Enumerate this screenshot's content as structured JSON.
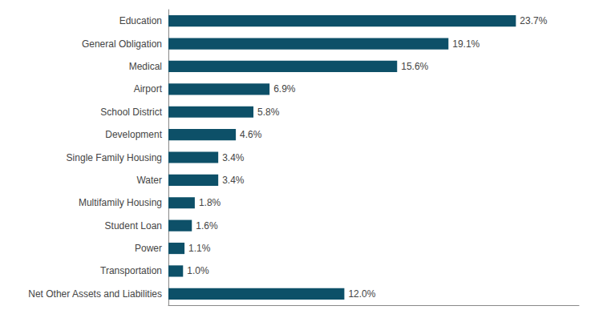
{
  "chart_data": {
    "type": "bar",
    "orientation": "horizontal",
    "categories": [
      "Education",
      "General Obligation",
      "Medical",
      "Airport",
      "School District",
      "Development",
      "Single Family Housing",
      "Water",
      "Multifamily Housing",
      "Student Loan",
      "Power",
      "Transportation",
      "Net Other Assets and Liabilities"
    ],
    "values": [
      23.7,
      19.1,
      15.6,
      6.9,
      5.8,
      4.6,
      3.4,
      3.4,
      1.8,
      1.6,
      1.1,
      1.0,
      12.0
    ],
    "value_labels": [
      "23.7%",
      "19.1%",
      "15.6%",
      "6.9%",
      "5.8%",
      "4.6%",
      "3.4%",
      "3.4%",
      "1.8%",
      "1.6%",
      "1.1%",
      "1.0%",
      "12.0%"
    ],
    "data_labels": true,
    "color": "#0D5068",
    "xlim": [
      0,
      28
    ],
    "grid": false,
    "tick_labels": "y"
  }
}
